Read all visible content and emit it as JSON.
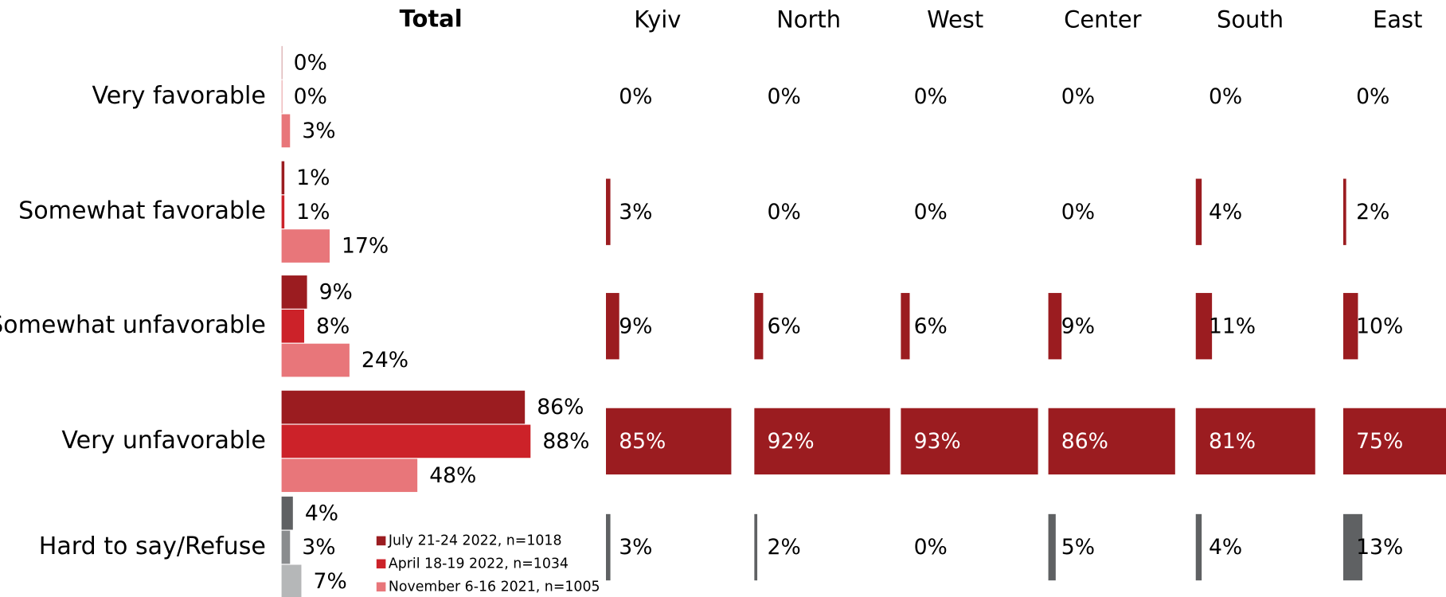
{
  "chart_data": [
    {
      "type": "bar",
      "orientation": "horizontal",
      "title": "Total",
      "categories": [
        "Very favorable",
        "Somewhat favorable",
        "Somewhat unfavorable",
        "Very unfavorable",
        "Hard to say/Refuse"
      ],
      "xlim": [
        0,
        100
      ],
      "series": [
        {
          "name": "July 21-24 2022, n=1018",
          "color": "#9b1c20",
          "colors": [
            "#9b1c20",
            "#9b1c20",
            "#9b1c20",
            "#9b1c20",
            "#5f6163"
          ],
          "values": [
            0,
            1,
            9,
            86,
            4
          ],
          "value_labels": [
            "0%",
            "1%",
            "9%",
            "86%",
            "4%"
          ]
        },
        {
          "name": "April 18-19 2022, n=1034",
          "color": "#cc2229",
          "colors": [
            "#cc2229",
            "#cc2229",
            "#cc2229",
            "#cc2229",
            "#8a8c8e"
          ],
          "values": [
            0,
            1,
            8,
            88,
            3
          ],
          "value_labels": [
            "0%",
            "1%",
            "8%",
            "88%",
            "3%"
          ]
        },
        {
          "name": "November 6-16 2021, n=1005",
          "color": "#e8767a",
          "colors": [
            "#e8767a",
            "#e8767a",
            "#e8767a",
            "#e8767a",
            "#b5b7b8"
          ],
          "values": [
            3,
            17,
            24,
            48,
            7
          ],
          "value_labels": [
            "3%",
            "17%",
            "24%",
            "48%",
            "7%"
          ]
        }
      ],
      "legend": "bottom-right"
    },
    {
      "type": "bar",
      "orientation": "horizontal",
      "xlim": [
        0,
        100
      ],
      "series": [
        {
          "name": "Kyiv",
          "colors": [
            "#9b1c20",
            "#9b1c20",
            "#9b1c20",
            "#9b1c20",
            "#5f6163"
          ],
          "values": [
            0,
            3,
            9,
            85,
            3
          ],
          "value_labels": [
            "0%",
            "3%",
            "9%",
            "85%",
            "3%"
          ]
        },
        {
          "name": "North",
          "colors": [
            "#9b1c20",
            "#9b1c20",
            "#9b1c20",
            "#9b1c20",
            "#5f6163"
          ],
          "values": [
            0,
            0,
            6,
            92,
            2
          ],
          "value_labels": [
            "0%",
            "0%",
            "6%",
            "92%",
            "2%"
          ]
        },
        {
          "name": "West",
          "colors": [
            "#9b1c20",
            "#9b1c20",
            "#9b1c20",
            "#9b1c20",
            "#5f6163"
          ],
          "values": [
            0,
            0,
            6,
            93,
            0
          ],
          "value_labels": [
            "0%",
            "0%",
            "6%",
            "93%",
            "0%"
          ]
        },
        {
          "name": "Center",
          "colors": [
            "#9b1c20",
            "#9b1c20",
            "#9b1c20",
            "#9b1c20",
            "#5f6163"
          ],
          "values": [
            0,
            0,
            9,
            86,
            5
          ],
          "value_labels": [
            "0%",
            "0%",
            "9%",
            "86%",
            "5%"
          ]
        },
        {
          "name": "South",
          "colors": [
            "#9b1c20",
            "#9b1c20",
            "#9b1c20",
            "#9b1c20",
            "#5f6163"
          ],
          "values": [
            0,
            4,
            11,
            81,
            4
          ],
          "value_labels": [
            "0%",
            "4%",
            "11%",
            "81%",
            "4%"
          ]
        },
        {
          "name": "East",
          "colors": [
            "#9b1c20",
            "#9b1c20",
            "#9b1c20",
            "#9b1c20",
            "#5f6163"
          ],
          "values": [
            0,
            2,
            10,
            75,
            13
          ],
          "value_labels": [
            "0%",
            "2%",
            "10%",
            "75%",
            "13%"
          ]
        }
      ]
    }
  ]
}
